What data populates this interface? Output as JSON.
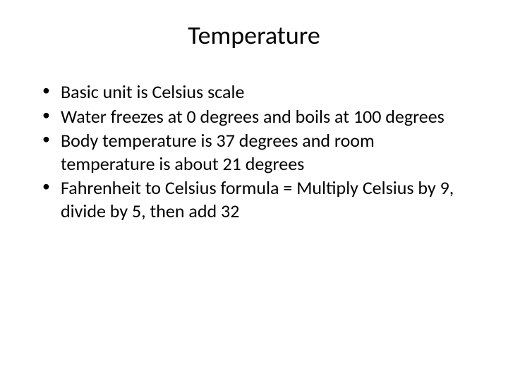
{
  "slide": {
    "title": "Temperature",
    "title_fontsize": 36,
    "bullets": [
      "Basic unit is Celsius scale",
      "Water freezes at 0 degrees and boils at 100 degrees",
      "Body temperature is 37 degrees and room temperature is about 21 degrees",
      "Fahrenheit to Celsius formula = Multiply Celsius by 9, divide by 5, then add 32"
    ],
    "bullet_fontsize": 26,
    "background_color": "#ffffff",
    "text_color": "#000000",
    "font_family": "Calibri"
  }
}
